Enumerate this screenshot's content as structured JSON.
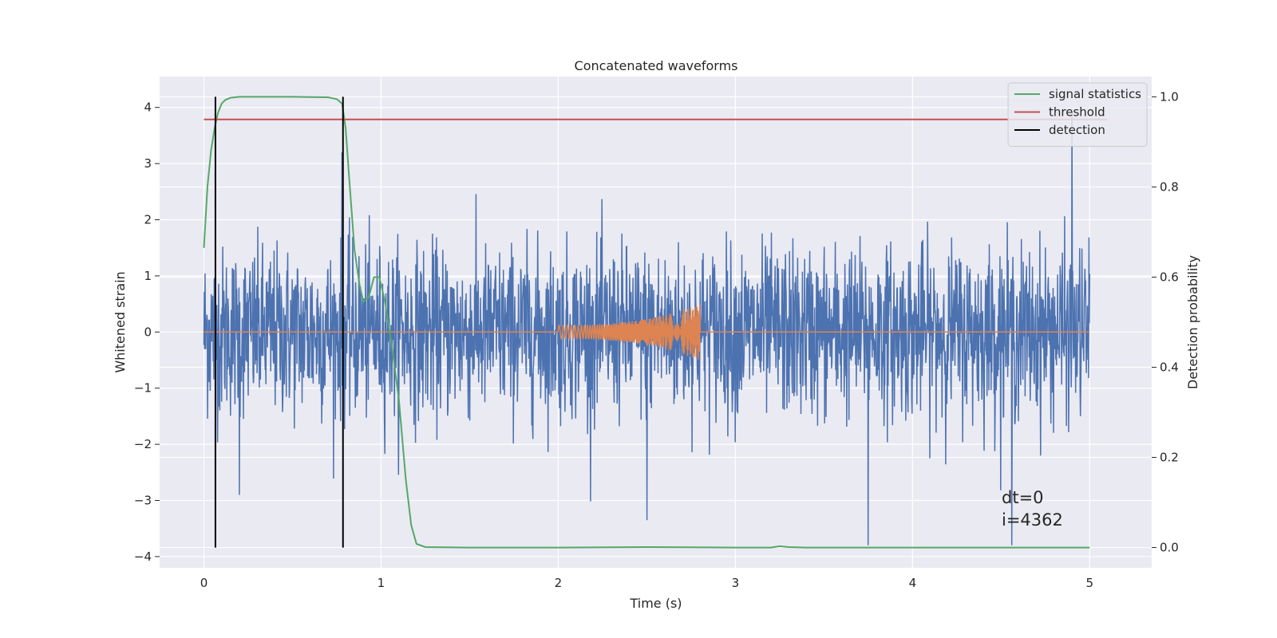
{
  "chart_data": {
    "type": "line",
    "title": "Concatenated waveforms",
    "xlabel": "Time (s)",
    "ylabel": "Whitened strain",
    "y2label": "Detection probability",
    "xlim": [
      -0.25,
      5.35
    ],
    "ylim": [
      -4.2,
      4.55
    ],
    "y2lim": [
      -0.045,
      1.045
    ],
    "x_ticks": [
      0,
      1,
      2,
      3,
      4,
      5
    ],
    "x_tick_labels": [
      "0",
      "1",
      "2",
      "3",
      "4",
      "5"
    ],
    "y_ticks": [
      -4,
      -3,
      -2,
      -1,
      0,
      1,
      2,
      3,
      4
    ],
    "y_tick_labels": [
      "−4",
      "−3",
      "−2",
      "−1",
      "0",
      "1",
      "2",
      "3",
      "4"
    ],
    "y2_ticks": [
      0.0,
      0.2,
      0.4,
      0.6,
      0.8,
      1.0
    ],
    "y2_tick_labels": [
      "0.0",
      "0.2",
      "0.4",
      "0.6",
      "0.8",
      "1.0"
    ],
    "grid": true,
    "legend_position": "top-right",
    "background_color": "#eaeaf2",
    "series": [
      {
        "name": "",
        "axis": "left",
        "color": "#4c72b0",
        "kind": "noise",
        "x_range": [
          0,
          5
        ],
        "sigma": 0.75,
        "notable_spikes": [
          [
            0.78,
            3.2
          ],
          [
            3.75,
            -3.8
          ],
          [
            4.56,
            -3.8
          ],
          [
            4.9,
            3.9
          ],
          [
            2.5,
            -3.35
          ],
          [
            0.2,
            -2.9
          ]
        ]
      },
      {
        "name": "",
        "axis": "left",
        "color": "#dd8452",
        "kind": "chirp",
        "x_range": [
          0,
          5
        ],
        "chirp_start": 2.0,
        "chirp_end": 2.8,
        "amp_start": 0.12,
        "amp_end": 0.5
      },
      {
        "name": "signal statistics",
        "axis": "right",
        "color": "#55a868",
        "x": [
          0,
          0.02,
          0.04,
          0.06,
          0.08,
          0.1,
          0.12,
          0.15,
          0.2,
          0.3,
          0.5,
          0.7,
          0.75,
          0.78,
          0.8,
          0.82,
          0.85,
          0.88,
          0.9,
          0.93,
          0.96,
          0.99,
          1.02,
          1.06,
          1.1,
          1.14,
          1.17,
          1.2,
          1.25,
          1.5,
          2.0,
          2.5,
          3.0,
          3.2,
          3.25,
          3.3,
          3.4,
          4.0,
          4.5,
          5.0
        ],
        "y": [
          0.665,
          0.8,
          0.88,
          0.93,
          0.965,
          0.985,
          0.993,
          0.998,
          1.0,
          1.0,
          1.0,
          0.999,
          0.995,
          0.985,
          0.93,
          0.82,
          0.66,
          0.58,
          0.545,
          0.555,
          0.6,
          0.6,
          0.55,
          0.45,
          0.33,
          0.15,
          0.05,
          0.008,
          0.001,
          0.0,
          0.0,
          0.001,
          0.0,
          0.0,
          0.003,
          0.001,
          0.0,
          0.0,
          0.0,
          0.0
        ]
      },
      {
        "name": "threshold",
        "axis": "right",
        "color": "#c44e52",
        "x": [
          0,
          5.1
        ],
        "y": [
          0.95,
          0.95
        ]
      },
      {
        "name": "detection",
        "axis": "right",
        "color": "#000000",
        "kind": "vlines",
        "x": [
          0.065,
          0.785
        ],
        "y": [
          0.0,
          1.0
        ]
      }
    ],
    "annotations": [
      "dt=0",
      "i=4362"
    ]
  }
}
